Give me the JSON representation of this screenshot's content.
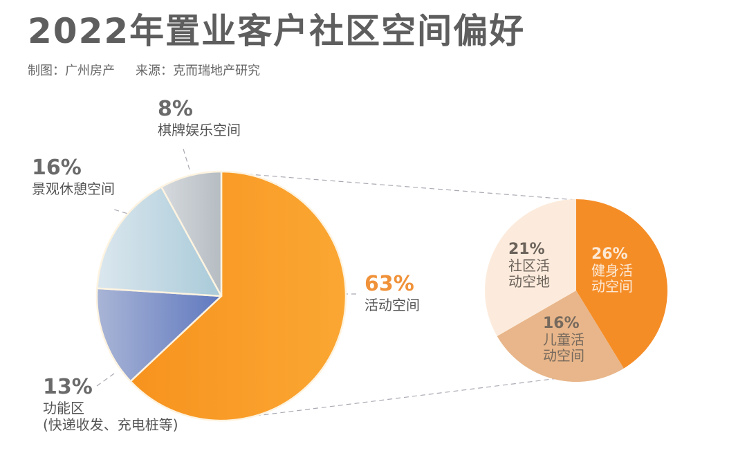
{
  "header": {
    "title": "2022年置业客户社区空间偏好",
    "credit_label": "制图：广州房产",
    "source_label": "来源：克而瑞地产研究"
  },
  "chart_data": [
    {
      "type": "pie",
      "title": "2022年置业客户社区空间偏好",
      "subtitle": "制图：广州房产  来源：克而瑞地产研究",
      "categories": [
        "活动空间",
        "功能区(快递收发、充电桩等)",
        "景观休憩空间",
        "棋牌娱乐空间"
      ],
      "values": [
        63,
        13,
        16,
        8
      ],
      "unit": "%",
      "colors": [
        "#f89c2c",
        "#7f93c9",
        "#b9d2de",
        "#c3c9cf"
      ],
      "start_angle_deg": 0,
      "direction": "clockwise",
      "legend": "none (direct labels)"
    },
    {
      "type": "pie",
      "title": "活动空间 breakdown",
      "categories": [
        "健身活动空间",
        "儿童活动空间",
        "社区活动空地"
      ],
      "values": [
        26,
        16,
        21
      ],
      "unit": "%",
      "colors": [
        "#f58d27",
        "#e8b68a",
        "#fcebdc"
      ],
      "start_angle_deg": 0,
      "direction": "clockwise"
    }
  ],
  "main_pie": {
    "slices": [
      {
        "pct": "63%",
        "name": "活动空间",
        "name2": ""
      },
      {
        "pct": "13%",
        "name": "功能区",
        "name2": "(快递收发、充电桩等)"
      },
      {
        "pct": "16%",
        "name": "景观休憩空间",
        "name2": ""
      },
      {
        "pct": "8%",
        "name": "棋牌娱乐空间",
        "name2": ""
      }
    ]
  },
  "sub_pie": {
    "slices": [
      {
        "pct": "26%",
        "name": "健身活动空间",
        "text_color": "#fbe9d6"
      },
      {
        "pct": "16%",
        "name": "儿童活动空间",
        "text_color": "#7a6a5c"
      },
      {
        "pct": "21%",
        "name": "社区活动空地",
        "text_color": "#6b625a"
      }
    ]
  }
}
